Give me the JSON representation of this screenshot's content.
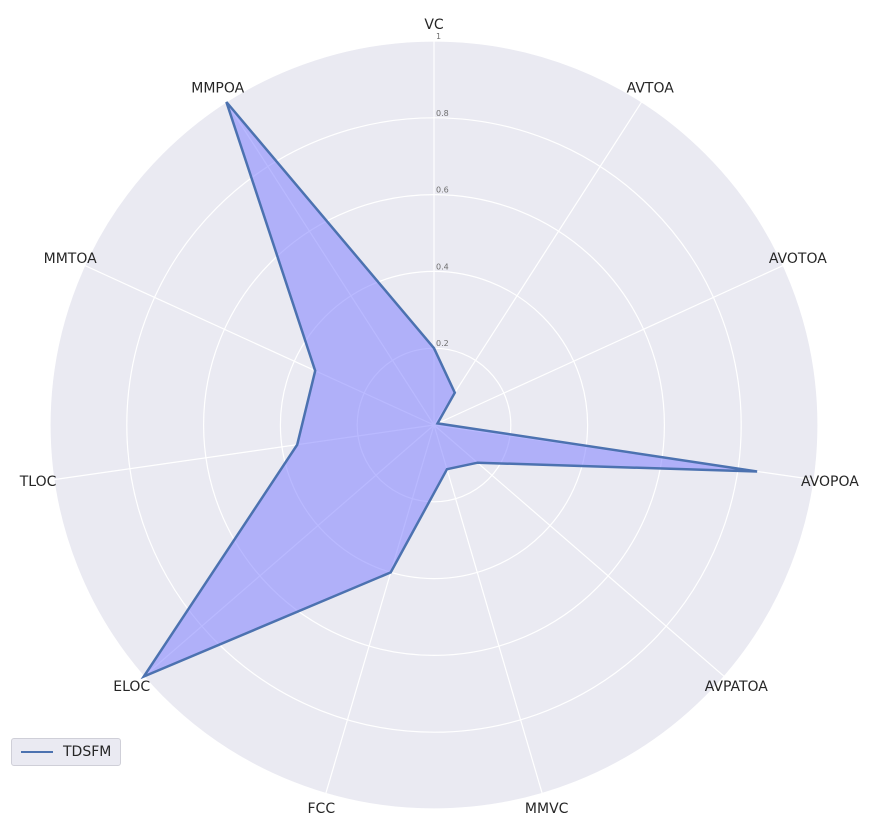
{
  "chart_data": {
    "type": "radar",
    "axes": [
      "VC",
      "AVTOA",
      "AVOTOA",
      "AVOPOA",
      "AVPATOA",
      "MMVC",
      "FCC",
      "ELOC",
      "TLOC",
      "MMTOA",
      "MMPOA"
    ],
    "rlim": [
      0,
      1
    ],
    "rticks": [
      "0.2",
      "0.4",
      "0.6",
      "0.8",
      "1"
    ],
    "grid": true,
    "legend_position": "bottom-left",
    "series": [
      {
        "name": "TDSFM",
        "values": [
          0.2,
          0.1,
          0.01,
          0.85,
          0.15,
          0.12,
          0.4,
          1.0,
          0.36,
          0.34,
          1.0
        ]
      }
    ]
  },
  "colors": {
    "background": "#eaeaf2",
    "grid": "#ffffff",
    "line": "#4c72b0",
    "fill": "#8080ff"
  }
}
